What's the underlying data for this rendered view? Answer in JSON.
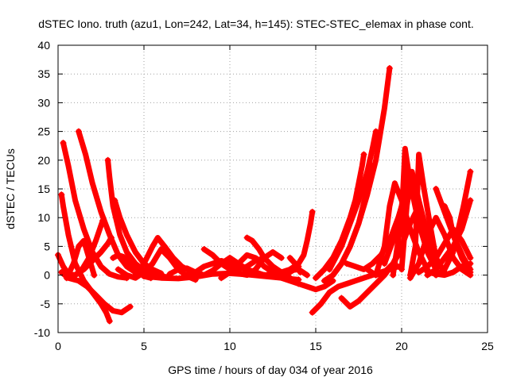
{
  "chart_data": {
    "type": "scatter",
    "title": "dSTEC Iono. truth (azu1, Lon=242, Lat=34, h=145): STEC-STEC_elemax in phase cont.",
    "xlabel": "GPS time / hours of day 034 of year 2016",
    "ylabel": "dSTEC  / TECUs",
    "xlim": [
      0,
      25
    ],
    "ylim": [
      -10,
      40
    ],
    "xticks": [
      0,
      5,
      10,
      15,
      20,
      25
    ],
    "yticks": [
      -10,
      -5,
      0,
      5,
      10,
      15,
      20,
      25,
      30,
      35,
      40
    ],
    "grid": true,
    "legend": "none",
    "marker": "+",
    "color": "#ff0000",
    "series": [
      {
        "x": [
          0.0,
          0.3,
          0.6,
          1.0,
          1.5,
          2.0,
          2.5,
          2.9,
          3.1
        ],
        "y": [
          3.5,
          1.5,
          0.2,
          0.0,
          1.0,
          2.5,
          4.0,
          5.5,
          6.5
        ]
      },
      {
        "x": [
          0.2,
          0.3,
          0.6,
          1.0,
          1.5,
          2.0,
          2.5,
          2.8,
          3.0
        ],
        "y": [
          14.0,
          12.0,
          7.0,
          2.0,
          -1.0,
          -3.0,
          -5.0,
          -6.5,
          -8.0
        ]
      },
      {
        "x": [
          0.3,
          0.6,
          1.0,
          1.5,
          2.0,
          2.5,
          3.0,
          3.5,
          4.0
        ],
        "y": [
          23.0,
          19.0,
          13.0,
          8.0,
          4.0,
          1.5,
          0.2,
          -0.3,
          -0.5
        ]
      },
      {
        "x": [
          1.2,
          1.6,
          2.0,
          2.5,
          3.0,
          3.5,
          4.0,
          4.5,
          5.0,
          5.5
        ],
        "y": [
          25.0,
          21.0,
          16.0,
          11.0,
          7.0,
          3.5,
          1.5,
          0.5,
          0.1,
          0.0
        ]
      },
      {
        "x": [
          0.2,
          0.6,
          1.2,
          1.7,
          2.2,
          2.7,
          3.2,
          3.7,
          4.2
        ],
        "y": [
          0.5,
          -0.5,
          -1.0,
          -2.0,
          -3.5,
          -5.0,
          -6.2,
          -6.5,
          -5.5
        ]
      },
      {
        "x": [
          0.5,
          0.9,
          1.2,
          1.5,
          1.8,
          2.1
        ],
        "y": [
          -0.5,
          2.0,
          5.0,
          6.0,
          3.0,
          0.0
        ]
      },
      {
        "x": [
          1.0,
          1.4,
          1.8,
          2.2,
          2.6
        ],
        "y": [
          0.0,
          1.0,
          3.0,
          6.0,
          9.5
        ]
      },
      {
        "x": [
          2.9,
          3.0,
          3.2,
          3.6,
          4.0,
          4.5,
          5.0,
          5.5,
          6.0,
          6.5
        ],
        "y": [
          20.0,
          17.0,
          12.0,
          7.0,
          4.0,
          2.0,
          0.8,
          0.2,
          -0.2,
          -0.4
        ]
      },
      {
        "x": [
          3.3,
          3.6,
          4.0,
          4.5,
          5.0,
          5.5,
          6.0
        ],
        "y": [
          13.0,
          10.0,
          7.0,
          4.0,
          2.0,
          1.0,
          0.3
        ]
      },
      {
        "x": [
          3.2,
          3.5,
          3.8,
          4.2,
          4.6,
          5.0,
          5.4
        ],
        "y": [
          3.0,
          3.5,
          3.2,
          2.0,
          0.8,
          -0.2,
          -0.5
        ]
      },
      {
        "x": [
          3.5,
          4.0,
          4.5,
          5.0,
          5.5,
          6.0,
          6.5,
          7.0,
          7.5,
          8.0
        ],
        "y": [
          1.0,
          0.0,
          -0.5,
          0.5,
          2.0,
          4.5,
          3.0,
          1.0,
          -0.2,
          -0.8
        ]
      },
      {
        "x": [
          4.5,
          5.0,
          5.5,
          5.8,
          6.2,
          6.7,
          7.2,
          7.8
        ],
        "y": [
          0.0,
          2.0,
          5.0,
          6.5,
          5.0,
          3.0,
          1.5,
          0.5
        ]
      },
      {
        "x": [
          5.0,
          6.0,
          7.0,
          8.0,
          9.0,
          10.0,
          11.0,
          12.0,
          13.0,
          14.0
        ],
        "y": [
          -0.2,
          -0.5,
          -0.6,
          -0.3,
          0.2,
          0.3,
          0.1,
          -0.2,
          -0.5,
          -0.8
        ]
      },
      {
        "x": [
          6.5,
          7.0,
          7.5,
          8.0,
          8.5,
          9.0,
          9.5,
          10.0,
          10.5,
          11.0
        ],
        "y": [
          0.2,
          1.0,
          1.2,
          0.5,
          0.0,
          0.8,
          2.0,
          3.0,
          2.0,
          0.5
        ]
      },
      {
        "x": [
          7.5,
          8.0,
          8.5,
          9.0,
          9.5,
          10.0,
          10.5,
          11.0,
          11.5,
          12.0
        ],
        "y": [
          0.0,
          0.5,
          1.5,
          2.0,
          2.5,
          2.0,
          1.0,
          1.5,
          2.5,
          3.0
        ]
      },
      {
        "x": [
          8.5,
          9.0,
          9.5,
          10.0,
          10.5,
          11.0,
          11.5,
          12.0,
          12.5,
          13.0
        ],
        "y": [
          4.5,
          3.5,
          2.0,
          1.0,
          0.3,
          0.0,
          1.0,
          3.0,
          4.0,
          3.0
        ]
      },
      {
        "x": [
          9.5,
          10.0,
          10.5,
          11.0,
          11.5,
          12.0,
          12.5,
          13.0,
          13.5,
          14.0
        ],
        "y": [
          -0.5,
          0.5,
          2.0,
          3.5,
          3.0,
          1.5,
          0.5,
          0.0,
          0.5,
          1.5
        ]
      },
      {
        "x": [
          10.0,
          10.5,
          11.0,
          11.5,
          12.0,
          12.5,
          13.0,
          13.5,
          14.0,
          14.5
        ],
        "y": [
          3.0,
          2.0,
          1.0,
          0.5,
          0.0,
          0.0,
          0.3,
          0.8,
          1.0,
          0.0
        ]
      },
      {
        "x": [
          11.0,
          11.3,
          11.7,
          12.0,
          12.5,
          13.0,
          13.5,
          14.0
        ],
        "y": [
          6.5,
          6.0,
          4.5,
          3.0,
          1.5,
          0.5,
          -0.5,
          -1.5
        ]
      },
      {
        "x": [
          12.0,
          12.5,
          13.0,
          13.5,
          14.0,
          14.3,
          14.5,
          14.7,
          14.8
        ],
        "y": [
          0.0,
          0.2,
          0.5,
          1.0,
          2.0,
          3.5,
          6.0,
          9.0,
          11.0
        ]
      },
      {
        "x": [
          12.5,
          13.0,
          13.5,
          14.0,
          14.5,
          15.0,
          15.5,
          16.0
        ],
        "y": [
          0.0,
          -0.5,
          -1.0,
          -1.5,
          -2.0,
          -2.5,
          -2.0,
          -1.0
        ]
      },
      {
        "x": [
          13.5,
          13.8,
          14.1
        ],
        "y": [
          3.0,
          2.0,
          0.5
        ]
      },
      {
        "x": [
          14.8,
          15.3,
          15.8,
          16.3,
          16.8,
          17.3,
          17.8,
          18.3,
          18.8,
          19.3,
          19.8
        ],
        "y": [
          -6.5,
          -5.0,
          -3.0,
          -2.0,
          -1.5,
          -1.0,
          -0.5,
          0.0,
          0.5,
          1.0,
          1.5
        ]
      },
      {
        "x": [
          15.0,
          15.5,
          16.0,
          16.5,
          17.0,
          17.3,
          17.5,
          17.7,
          17.8
        ],
        "y": [
          -0.5,
          1.0,
          3.0,
          6.0,
          10.0,
          13.0,
          16.0,
          19.0,
          21.0
        ]
      },
      {
        "x": [
          15.5,
          16.0,
          16.5,
          17.0,
          17.5,
          18.0,
          18.3
        ],
        "y": [
          -1.0,
          0.0,
          2.0,
          5.0,
          9.0,
          15.0,
          19.0
        ]
      },
      {
        "x": [
          15.8,
          16.5,
          17.0,
          17.5,
          18.0,
          18.3,
          18.5
        ],
        "y": [
          1.0,
          5.0,
          9.0,
          13.0,
          18.0,
          22.0,
          25.0
        ]
      },
      {
        "x": [
          16.0,
          16.5,
          17.0,
          17.5,
          18.0,
          18.5,
          19.0,
          19.3
        ],
        "y": [
          0.0,
          2.0,
          5.0,
          9.0,
          14.0,
          20.0,
          29.0,
          36.0
        ]
      },
      {
        "x": [
          16.5,
          17.0,
          17.5,
          18.0,
          18.5,
          19.0,
          19.5,
          20.0
        ],
        "y": [
          -4.0,
          -5.5,
          -4.5,
          -3.0,
          -1.5,
          0.0,
          2.0,
          4.5
        ]
      },
      {
        "x": [
          16.8,
          17.3,
          17.8,
          18.3,
          18.8,
          19.3,
          19.8,
          20.3
        ],
        "y": [
          2.0,
          1.5,
          1.0,
          2.0,
          3.5,
          6.0,
          10.0,
          15.0
        ]
      },
      {
        "x": [
          18.0,
          18.5,
          19.0,
          19.5,
          20.0,
          20.5,
          21.0
        ],
        "y": [
          1.0,
          0.0,
          0.5,
          2.0,
          5.0,
          9.0,
          12.0
        ]
      },
      {
        "x": [
          18.5,
          19.0,
          19.3,
          19.6,
          20.0,
          20.5,
          21.0,
          21.5
        ],
        "y": [
          0.0,
          5.0,
          12.0,
          16.0,
          13.0,
          8.0,
          4.0,
          1.0
        ]
      },
      {
        "x": [
          19.0,
          19.5,
          20.0,
          20.3,
          20.6,
          21.0,
          21.5,
          22.0
        ],
        "y": [
          2.0,
          6.0,
          12.0,
          18.0,
          15.0,
          10.0,
          5.0,
          2.0
        ]
      },
      {
        "x": [
          19.5,
          20.0,
          20.2,
          20.5,
          21.0,
          21.5,
          22.0
        ],
        "y": [
          0.0,
          10.0,
          22.0,
          16.0,
          9.0,
          4.0,
          1.0
        ]
      },
      {
        "x": [
          20.0,
          20.3,
          20.6,
          21.0,
          21.5,
          22.0,
          22.5
        ],
        "y": [
          1.0,
          12.0,
          18.0,
          13.0,
          7.0,
          3.0,
          0.5
        ]
      },
      {
        "x": [
          20.5,
          20.8,
          21.0,
          21.3,
          21.7,
          22.0
        ],
        "y": [
          0.0,
          5.0,
          21.0,
          15.0,
          8.0,
          3.0
        ]
      },
      {
        "x": [
          20.5,
          21.0,
          21.5,
          22.0,
          22.5,
          23.0,
          23.5,
          24.0
        ],
        "y": [
          -0.5,
          2.0,
          7.0,
          10.0,
          7.0,
          3.0,
          1.0,
          0.0
        ]
      },
      {
        "x": [
          21.0,
          21.5,
          22.0,
          22.5,
          23.0,
          23.5,
          24.0
        ],
        "y": [
          0.5,
          1.5,
          3.0,
          5.5,
          8.0,
          6.0,
          3.0
        ]
      },
      {
        "x": [
          22.0,
          22.5,
          23.0,
          23.5,
          24.0
        ],
        "y": [
          15.0,
          11.0,
          7.0,
          3.0,
          0.5
        ]
      },
      {
        "x": [
          22.5,
          22.8,
          23.0,
          23.3,
          23.6,
          24.0
        ],
        "y": [
          12.0,
          10.0,
          7.0,
          5.0,
          3.0,
          1.0
        ]
      },
      {
        "x": [
          21.5,
          22.0,
          22.5,
          23.0,
          23.5,
          24.0
        ],
        "y": [
          0.0,
          1.0,
          3.0,
          5.0,
          8.0,
          13.0
        ]
      },
      {
        "x": [
          22.0,
          22.5,
          23.0,
          23.3,
          23.6,
          23.8,
          24.0
        ],
        "y": [
          0.0,
          1.0,
          4.0,
          8.0,
          12.0,
          15.0,
          18.0
        ]
      },
      {
        "x": [
          21.5,
          22.0,
          22.5,
          23.0,
          23.5,
          24.0
        ],
        "y": [
          0.5,
          0.2,
          0.0,
          0.5,
          1.5,
          2.0
        ]
      }
    ]
  }
}
